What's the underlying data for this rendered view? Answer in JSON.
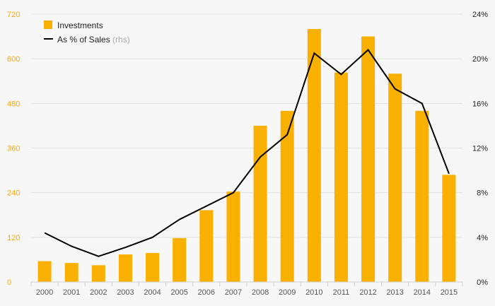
{
  "chart_data": {
    "type": "bar",
    "categories": [
      "2000",
      "2001",
      "2002",
      "2003",
      "2004",
      "2005",
      "2006",
      "2007",
      "2008",
      "2009",
      "2010",
      "2011",
      "2012",
      "2013",
      "2014",
      "2015"
    ],
    "series": [
      {
        "name": "Investments",
        "type": "bar",
        "axis": "left",
        "color": "#f9b000",
        "values": [
          56,
          51,
          45,
          74,
          78,
          118,
          193,
          243,
          420,
          460,
          680,
          563,
          660,
          560,
          460,
          288
        ]
      },
      {
        "name": "As % of Sales",
        "type": "line",
        "axis": "right",
        "color": "#000000",
        "values": [
          4.4,
          3.2,
          2.3,
          3.1,
          4.0,
          5.6,
          6.8,
          8.0,
          11.2,
          13.2,
          20.5,
          18.6,
          20.8,
          17.3,
          16.0,
          9.7
        ]
      }
    ],
    "legend_rhs_suffix": "(rhs)",
    "ylim_left": [
      0,
      720
    ],
    "yticks_left": [
      "0",
      "120",
      "240",
      "360",
      "480",
      "600",
      "720"
    ],
    "ylim_right": [
      0,
      24
    ],
    "yticks_right": [
      "0%",
      "4%",
      "8%",
      "12%",
      "16%",
      "20%",
      "24%"
    ],
    "grid": true,
    "legend_position": "top-left"
  }
}
